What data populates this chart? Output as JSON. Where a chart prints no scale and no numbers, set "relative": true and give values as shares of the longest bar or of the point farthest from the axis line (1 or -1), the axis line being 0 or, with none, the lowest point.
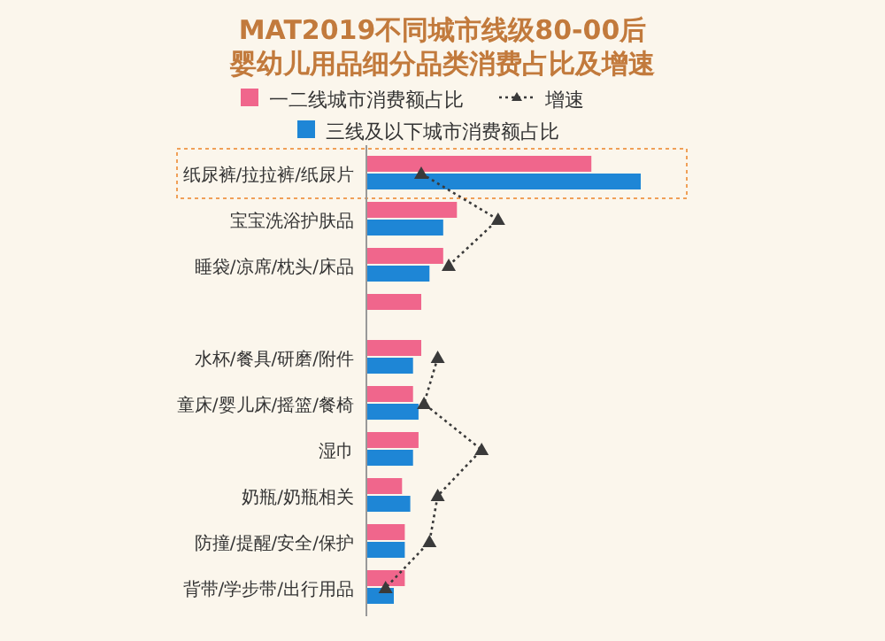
{
  "chart_data": {
    "type": "bar",
    "orientation": "horizontal",
    "relative": true,
    "title": "MAT2019不同城市线级80-00后",
    "subtitle": "婴幼儿用品细分品类消费占比及增速",
    "legend": "top",
    "categories": [
      "纸尿裤/拉拉裤/纸尿片",
      "宝宝洗浴护肤品",
      "睡袋/凉席/枕头/床品",
      null,
      "水杯/餐具/研磨/附件",
      "童床/婴儿床/摇篮/餐椅",
      "湿巾",
      "奶瓶/奶瓶相关",
      "防撞/提醒/安全/保护",
      "背带/学步带/出行用品"
    ],
    "series": [
      {
        "name": "一二线城市消费额占比",
        "color": "#f0668c",
        "values": [
          0.82,
          0.33,
          0.28,
          0.2,
          0.2,
          0.17,
          0.19,
          0.13,
          0.14,
          0.14
        ]
      },
      {
        "name": "三线及以下城市消费额占比",
        "color": "#1e86d6",
        "values": [
          1,
          0.28,
          0.23,
          null,
          0.17,
          0.19,
          0.17,
          0.16,
          0.14,
          0.1
        ]
      },
      {
        "name": "增速",
        "type": "line",
        "color": "#3a3a3a",
        "marker": "triangle",
        "line_style": "dotted",
        "values": [
          0.2,
          0.48,
          0.3,
          null,
          0.26,
          0.21,
          0.42,
          0.26,
          0.23,
          0.07
        ]
      }
    ]
  }
}
